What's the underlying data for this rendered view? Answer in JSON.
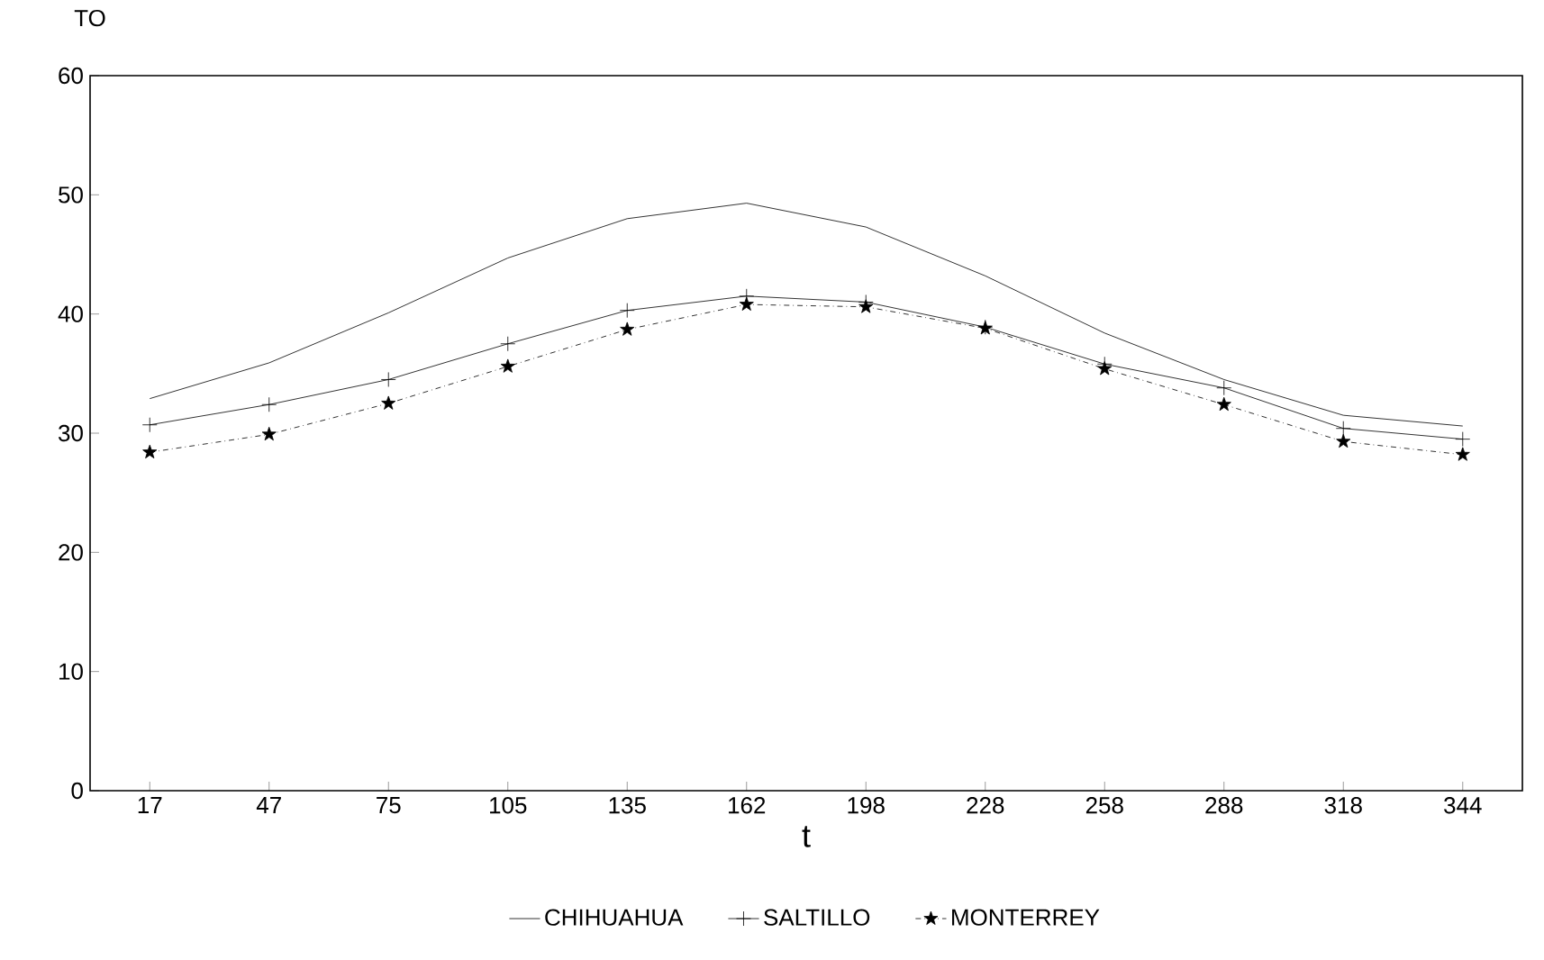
{
  "chart_data": {
    "type": "line",
    "xlabel": "t",
    "ylabel": "TO",
    "categories": [
      "17",
      "47",
      "75",
      "105",
      "135",
      "162",
      "198",
      "228",
      "258",
      "288",
      "318",
      "344"
    ],
    "series": [
      {
        "name": "CHIHUAHUA",
        "color": "#000000",
        "marker": "none",
        "line_style": "solid",
        "values": [
          32.9,
          35.9,
          40.1,
          44.7,
          48.0,
          49.3,
          47.3,
          43.2,
          38.4,
          34.5,
          31.5,
          30.6
        ]
      },
      {
        "name": "SALTILLO",
        "color": "#000000",
        "marker": "cross",
        "line_style": "solid",
        "values": [
          30.7,
          32.4,
          34.5,
          37.5,
          40.3,
          41.5,
          41.0,
          38.9,
          35.8,
          33.8,
          30.4,
          29.5
        ]
      },
      {
        "name": "MONTERREY",
        "color": "#000000",
        "marker": "star",
        "line_style": "dashed",
        "values": [
          28.4,
          29.9,
          32.5,
          35.6,
          38.7,
          40.8,
          40.6,
          38.8,
          35.4,
          32.4,
          29.3,
          28.2
        ]
      }
    ],
    "ylim": [
      0,
      60
    ],
    "yticks": [
      0,
      10,
      20,
      30,
      40,
      50,
      60
    ],
    "grid": false,
    "legend": "bottom"
  }
}
